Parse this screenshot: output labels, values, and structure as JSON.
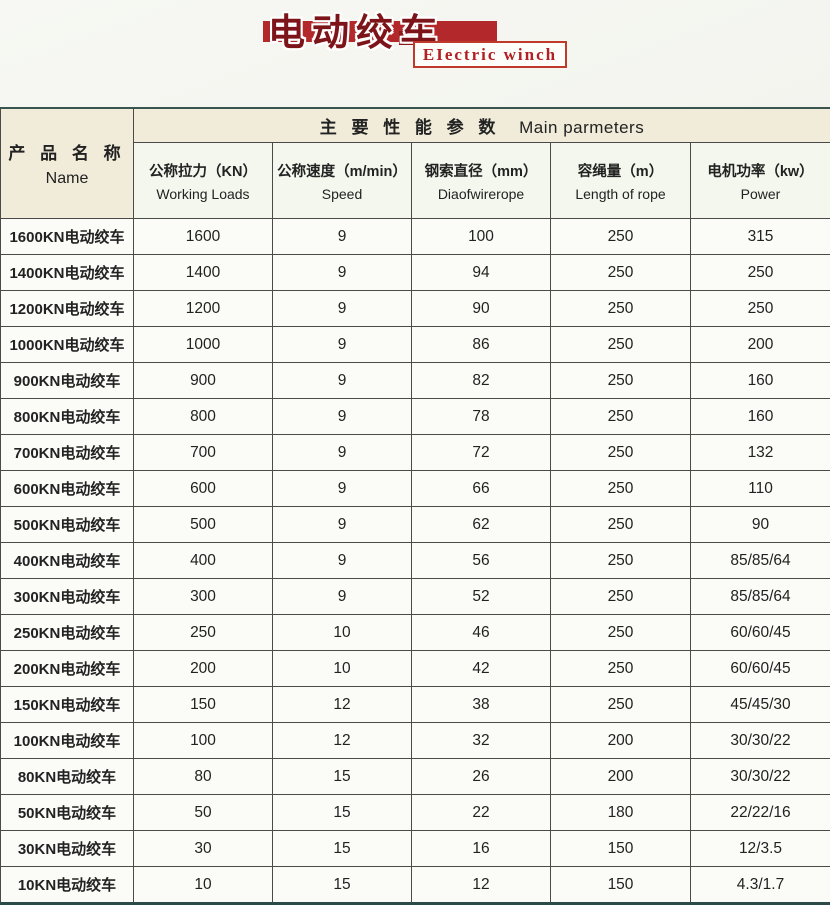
{
  "page": {
    "background": "#f2f3ee"
  },
  "banner": {
    "title_cn": "电动绞车",
    "title_en": "EIectric winch",
    "band_color": "#b3292b",
    "title_color": "#7d1419",
    "box_border_color": "#c03a2b",
    "box_text_color": "#b21f24"
  },
  "table": {
    "main_header": {
      "cn": "主 要 性 能 参 数",
      "en": "Main parmeters"
    },
    "name_header": {
      "cn": "产 品 名 称",
      "en": "Name"
    },
    "columns": [
      {
        "cn": "公称拉力（KN）",
        "en": "Working Loads"
      },
      {
        "cn": "公称速度（m/min）",
        "en": "Speed"
      },
      {
        "cn": "钢索直径（mm）",
        "en": "Diaofwirerope"
      },
      {
        "cn": "容绳量（m）",
        "en": "Length of rope"
      },
      {
        "cn": "电机功率（kw）",
        "en": "Power"
      }
    ],
    "rows": [
      {
        "name": "1600KN电动绞车",
        "values": [
          "1600",
          "9",
          "100",
          "250",
          "315"
        ]
      },
      {
        "name": "1400KN电动绞车",
        "values": [
          "1400",
          "9",
          "94",
          "250",
          "250"
        ]
      },
      {
        "name": "1200KN电动绞车",
        "values": [
          "1200",
          "9",
          "90",
          "250",
          "250"
        ]
      },
      {
        "name": "1000KN电动绞车",
        "values": [
          "1000",
          "9",
          "86",
          "250",
          "200"
        ]
      },
      {
        "name": "900KN电动绞车",
        "values": [
          "900",
          "9",
          "82",
          "250",
          "160"
        ]
      },
      {
        "name": "800KN电动绞车",
        "values": [
          "800",
          "9",
          "78",
          "250",
          "160"
        ]
      },
      {
        "name": "700KN电动绞车",
        "values": [
          "700",
          "9",
          "72",
          "250",
          "132"
        ]
      },
      {
        "name": "600KN电动绞车",
        "values": [
          "600",
          "9",
          "66",
          "250",
          "110"
        ]
      },
      {
        "name": "500KN电动绞车",
        "values": [
          "500",
          "9",
          "62",
          "250",
          "90"
        ]
      },
      {
        "name": "400KN电动绞车",
        "values": [
          "400",
          "9",
          "56",
          "250",
          "85/85/64"
        ]
      },
      {
        "name": "300KN电动绞车",
        "values": [
          "300",
          "9",
          "52",
          "250",
          "85/85/64"
        ]
      },
      {
        "name": "250KN电动绞车",
        "values": [
          "250",
          "10",
          "46",
          "250",
          "60/60/45"
        ]
      },
      {
        "name": "200KN电动绞车",
        "values": [
          "200",
          "10",
          "42",
          "250",
          "60/60/45"
        ]
      },
      {
        "name": "150KN电动绞车",
        "values": [
          "150",
          "12",
          "38",
          "250",
          "45/45/30"
        ]
      },
      {
        "name": "100KN电动绞车",
        "values": [
          "100",
          "12",
          "32",
          "200",
          "30/30/22"
        ]
      },
      {
        "name": "80KN电动绞车",
        "values": [
          "80",
          "15",
          "26",
          "200",
          "30/30/22"
        ]
      },
      {
        "name": "50KN电动绞车",
        "values": [
          "50",
          "15",
          "22",
          "180",
          "22/22/16"
        ]
      },
      {
        "name": "30KN电动绞车",
        "values": [
          "30",
          "15",
          "16",
          "150",
          "12/3.5"
        ]
      },
      {
        "name": "10KN电动绞车",
        "values": [
          "10",
          "15",
          "12",
          "150",
          "4.3/1.7"
        ]
      }
    ]
  }
}
